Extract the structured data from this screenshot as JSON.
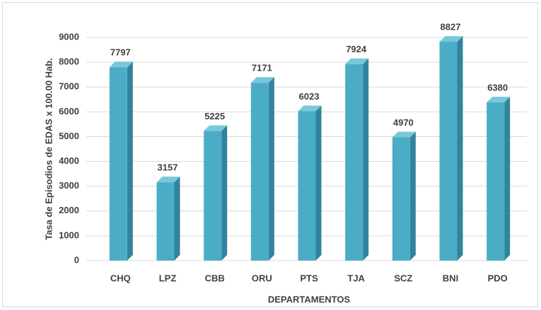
{
  "chart_data": {
    "type": "bar",
    "x_label": "DEPARTAMENTOS",
    "y_label": "Tasa de Episodios de EDAS x 100.00 Hab.",
    "categories": [
      "CHQ",
      "LPZ",
      "CBB",
      "ORU",
      "PTS",
      "TJA",
      "SCZ",
      "BNI",
      "PDO"
    ],
    "values": [
      7797,
      3157,
      5225,
      7171,
      6023,
      7924,
      4970,
      8827,
      6380
    ],
    "color": "#4bacc6",
    "ylim": [
      0,
      9000
    ],
    "yticks": [
      0,
      1000,
      2000,
      3000,
      4000,
      5000,
      6000,
      7000,
      8000,
      9000
    ],
    "grid": true
  }
}
